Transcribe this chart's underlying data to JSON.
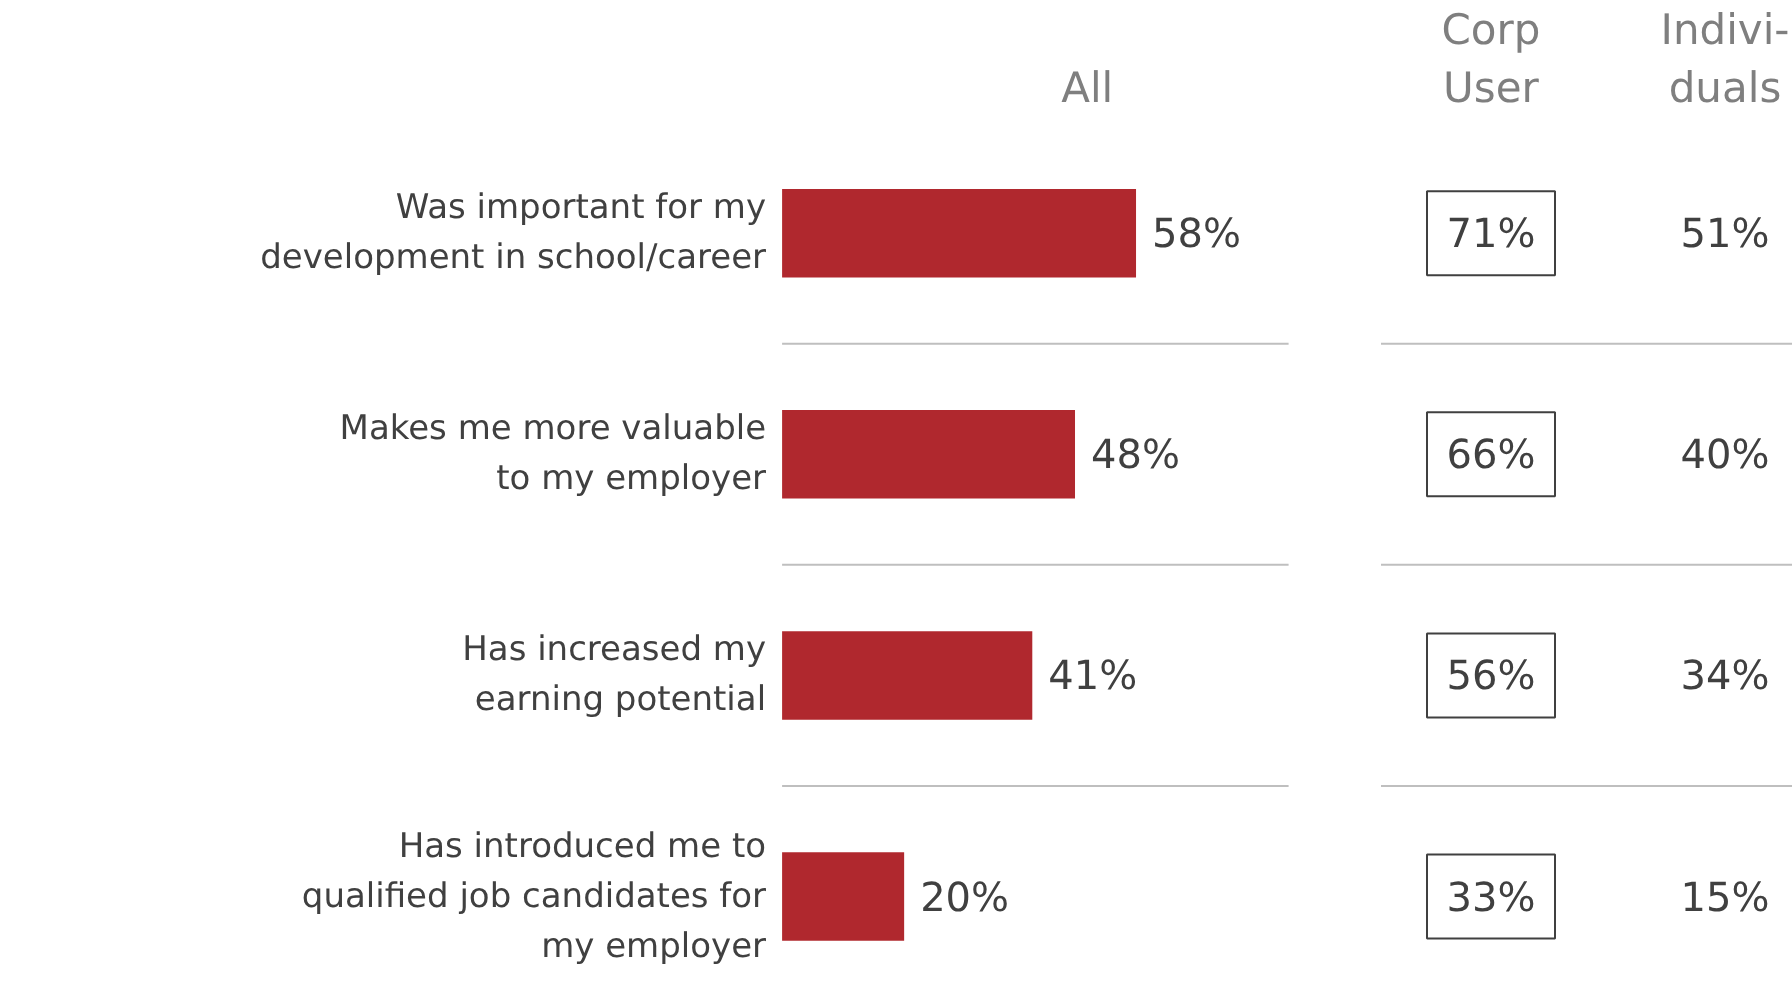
{
  "chart_data": [
    {
      "type": "bar",
      "orientation": "horizontal",
      "grid": "y",
      "tick_labels": false,
      "categories": [
        "Was important for my\ndevelopment in school/career",
        "Makes me more valuable\nto my employer",
        "Has increased my\nearning potential",
        "Has introduced me to\nqualified job candidates for\nmy employer"
      ],
      "series": [
        {
          "name": "All",
          "color": "#b0282e",
          "values": [
            58,
            48,
            41,
            20
          ],
          "value_labels": [
            "58%",
            "48%",
            "41%",
            "20%"
          ]
        }
      ]
    },
    {
      "type": "other",
      "annotations": [
        "Corp\nUser",
        "Indivi-\nduals",
        "71%",
        "51%",
        "66%",
        "40%",
        "56%",
        "34%",
        "33%",
        "15%"
      ]
    }
  ]
}
